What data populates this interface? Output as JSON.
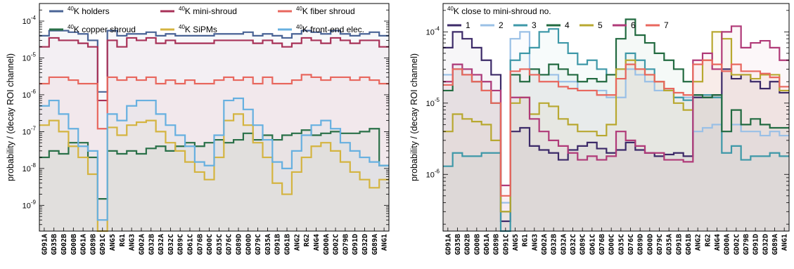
{
  "chart_data": [
    {
      "type": "line",
      "step": true,
      "log_y": true,
      "ylim": [
        2e-10,
        0.0003
      ],
      "yticks": [
        "10^-9",
        "10^-8",
        "10^-7",
        "10^-6",
        "10^-5",
        "10^-4"
      ],
      "ylabel": "probability / (decay ROI channel)",
      "legend_title": "",
      "legend_placement": "top",
      "categories": [
        "GD91A",
        "GD35B",
        "GD02B",
        "GD00B",
        "GD61A",
        "GD89B",
        "GD91C",
        "ANG5",
        "RG1",
        "ANG3",
        "GD02A",
        "GD32B",
        "GD32A",
        "GD32C",
        "GD89C",
        "GD61C",
        "GD76B",
        "GD00C",
        "GD35C",
        "GD76C",
        "GD89D",
        "GD00D",
        "GD79C",
        "GD35A",
        "GD91B",
        "GD61B",
        "ANG2",
        "RG2",
        "ANG4",
        "GD00A",
        "GD02C",
        "GD79B",
        "GD91D",
        "GD32D",
        "GD89A",
        "ANG1"
      ],
      "series": [
        {
          "name": "K holders",
          "sup": "40",
          "color": "#4a6496",
          "values": [
            4e-05,
            5.5e-05,
            5.5e-05,
            5e-05,
            4.5e-05,
            3e-05,
            1.2e-06,
            5.5e-05,
            4e-05,
            4.5e-05,
            4.5e-05,
            5e-05,
            4e-05,
            4.5e-05,
            4e-05,
            4e-05,
            4e-05,
            4e-05,
            4.5e-05,
            4.5e-05,
            4.5e-05,
            5e-05,
            4e-05,
            4.5e-05,
            4e-05,
            3.5e-05,
            4.5e-05,
            5.5e-05,
            5e-05,
            4.5e-05,
            5.5e-05,
            4.5e-05,
            4e-05,
            4.5e-05,
            5e-05,
            4e-05
          ]
        },
        {
          "name": "K mini-shroud",
          "sup": "40",
          "color": "#a83258",
          "values": [
            2e-05,
            3.5e-05,
            3e-05,
            3e-05,
            2.5e-05,
            2e-05,
            7e-07,
            3e-05,
            2e-05,
            3.5e-05,
            3e-05,
            3.5e-05,
            2.5e-05,
            3e-05,
            2.5e-05,
            2.5e-05,
            2.5e-05,
            2.5e-05,
            3e-05,
            3e-05,
            3e-05,
            3e-05,
            2.5e-05,
            3e-05,
            2.5e-05,
            2e-05,
            2.5e-05,
            3.5e-05,
            3e-05,
            2.5e-05,
            3.5e-05,
            3e-05,
            2.5e-05,
            3e-05,
            3e-05,
            2e-05
          ]
        },
        {
          "name": "K fiber shroud",
          "sup": "40",
          "color": "#e8675e",
          "values": [
            2e-06,
            3e-06,
            3e-06,
            2.5e-06,
            2e-06,
            2e-06,
            1.2e-07,
            3e-06,
            2.5e-06,
            3e-06,
            2.5e-06,
            3e-06,
            2e-06,
            2.5e-06,
            2e-06,
            2.5e-06,
            2e-06,
            2e-06,
            2.5e-06,
            3e-06,
            2.5e-06,
            3e-06,
            2e-06,
            3e-06,
            2e-06,
            2e-06,
            2.5e-06,
            3.5e-06,
            3e-06,
            2.5e-06,
            3e-06,
            3e-06,
            2.5e-06,
            3e-06,
            2.5e-06,
            2e-06
          ]
        },
        {
          "name": "K copper shroud",
          "sup": "40",
          "color": "#2a7048",
          "values": [
            2e-08,
            3e-08,
            2.5e-08,
            5e-08,
            5e-08,
            2e-08,
            1.5e-09,
            3e-08,
            2.5e-08,
            3e-08,
            2.5e-08,
            3.5e-08,
            4e-08,
            3e-08,
            4e-08,
            5e-08,
            4e-08,
            5e-08,
            6e-08,
            5e-08,
            6e-08,
            9e-08,
            6e-08,
            8e-08,
            6e-08,
            8e-08,
            9e-08,
            1.1e-07,
            8e-08,
            9e-08,
            1e-07,
            9e-08,
            9e-08,
            1e-07,
            1.2e-07,
            1.2e-08
          ]
        },
        {
          "name": "K SiPMs",
          "sup": "40",
          "color": "#d4b440",
          "values": [
            1.5e-07,
            2e-07,
            1e-07,
            4e-08,
            2e-08,
            7e-09,
            2e-10,
            1.3e-07,
            8e-08,
            1.5e-07,
            1.8e-07,
            2e-07,
            1e-07,
            5e-08,
            3e-08,
            1.5e-08,
            8e-09,
            5e-09,
            2e-08,
            2e-07,
            3e-07,
            1.5e-07,
            5e-08,
            2e-08,
            4e-09,
            2e-09,
            8e-09,
            2e-08,
            4e-08,
            5e-08,
            3e-08,
            1.5e-08,
            8e-09,
            5e-09,
            3e-09,
            5e-09
          ]
        },
        {
          "name": "K front-end elec.",
          "sup": "40",
          "color": "#67b0e0",
          "values": [
            5e-07,
            7e-07,
            3e-07,
            1.2e-07,
            4e-08,
            3e-08,
            4e-10,
            3e-07,
            2e-07,
            5e-07,
            7e-07,
            7e-07,
            3e-07,
            1.5e-07,
            8e-08,
            4e-08,
            1.5e-08,
            1.2e-08,
            8e-08,
            7e-07,
            8e-07,
            4e-07,
            1.5e-07,
            6e-08,
            1.5e-08,
            1e-08,
            3e-08,
            8e-08,
            1.5e-07,
            2e-07,
            1.2e-07,
            5e-08,
            3e-08,
            2e-08,
            1.5e-08,
            1.2e-08
          ]
        }
      ]
    },
    {
      "type": "line",
      "step": true,
      "log_y": true,
      "ylim": [
        1.6e-07,
        0.00025
      ],
      "yticks": [
        "10^-6",
        "10^-5",
        "10^-4"
      ],
      "ylabel": "probability / (decay ROI channel)",
      "legend_title": "K close to mini-shroud no.",
      "legend_title_sup": "40",
      "legend_placement": "top",
      "categories": [
        "GD91A",
        "GD35B",
        "GD02B",
        "GD00B",
        "GD61A",
        "GD89B",
        "GD91C",
        "ANG5",
        "RG1",
        "ANG3",
        "GD02A",
        "GD32B",
        "GD32A",
        "GD32C",
        "GD89C",
        "GD61C",
        "GD76B",
        "GD00C",
        "GD35C",
        "GD76C",
        "GD89D",
        "GD00D",
        "GD79C",
        "GD35A",
        "GD91B",
        "GD61B",
        "ANG2",
        "RG2",
        "ANG4",
        "GD00A",
        "GD02C",
        "GD79B",
        "GD91D",
        "GD32D",
        "GD89A",
        "ANG1"
      ],
      "series": [
        {
          "name": "1",
          "color": "#3c2a68",
          "values": [
            6e-05,
            0.0001,
            8e-05,
            6e-05,
            4e-05,
            2.5e-05,
            2.2e-07,
            4e-06,
            4.5e-06,
            2.5e-06,
            2.2e-06,
            2e-06,
            1.6e-06,
            2.2e-06,
            2.5e-06,
            2.8e-06,
            2.3e-06,
            2e-06,
            2.2e-06,
            2.8e-06,
            2.2e-06,
            2e-06,
            1.8e-06,
            1.9e-06,
            2e-06,
            1.8e-06,
            1.2e-05,
            1.2e-05,
            1.3e-05,
            3e-05,
            2.2e-05,
            2.5e-05,
            2e-05,
            1.6e-05,
            2e-05,
            1.4e-05
          ]
        },
        {
          "name": "2",
          "color": "#9ac0e6",
          "values": [
            2.5e-05,
            3.5e-05,
            3e-05,
            2.5e-05,
            2e-05,
            1.5e-05,
            4e-07,
            8e-05,
            0.0001,
            3e-05,
            2.5e-05,
            2.5e-05,
            2e-05,
            2e-05,
            1.5e-05,
            1.5e-05,
            1.5e-05,
            1.2e-05,
            1.2e-05,
            3e-05,
            2.5e-05,
            2e-05,
            1.5e-05,
            1.5e-05,
            1.2e-05,
            1.2e-05,
            4e-06,
            4.5e-06,
            5e-06,
            4e-06,
            5e-06,
            4e-06,
            4e-06,
            3.5e-06,
            4e-06,
            3.5e-06
          ]
        },
        {
          "name": "3",
          "color": "#3e98a8",
          "values": [
            1.3e-06,
            2e-06,
            1.8e-06,
            1.8e-06,
            2e-06,
            2e-06,
            1.6e-07,
            4e-05,
            5e-05,
            6e-05,
            0.0001,
            0.00011,
            7e-05,
            5e-05,
            3.5e-05,
            4e-05,
            3e-05,
            2.5e-05,
            3e-05,
            5e-05,
            4e-05,
            3e-05,
            2e-05,
            1.5e-05,
            1.2e-05,
            1.1e-05,
            1.3e-05,
            1.3e-05,
            1.2e-05,
            2e-06,
            2.5e-06,
            1.6e-06,
            1.8e-06,
            1.8e-06,
            2e-06,
            1.8e-06
          ]
        },
        {
          "name": "4",
          "color": "#226a40",
          "values": [
            1.5e-05,
            3e-05,
            2.5e-05,
            2e-05,
            1.5e-05,
            1e-05,
            3e-07,
            2.5e-05,
            2e-05,
            3e-05,
            2.5e-05,
            3.5e-05,
            3e-05,
            2.5e-05,
            2e-05,
            2.2e-05,
            2e-05,
            2.5e-05,
            8e-05,
            0.00015,
            9e-05,
            7e-05,
            5e-05,
            4e-05,
            3e-05,
            2e-05,
            1.3e-05,
            1.2e-05,
            1.3e-05,
            4e-06,
            8e-06,
            5e-06,
            6e-06,
            5e-06,
            4.5e-06,
            4.5e-06
          ]
        },
        {
          "name": "5",
          "color": "#b8a830",
          "values": [
            4e-06,
            7e-06,
            6e-06,
            5.5e-06,
            5e-06,
            3e-06,
            3e-07,
            1e-05,
            1.2e-05,
            7e-06,
            1e-05,
            9e-06,
            6e-06,
            5e-06,
            4e-06,
            4e-06,
            3.5e-06,
            5e-06,
            3e-05,
            4e-05,
            3e-05,
            2.5e-05,
            2e-05,
            1.5e-05,
            1e-05,
            8e-06,
            2e-05,
            4e-05,
            0.0001,
            8e-05,
            2.5e-05,
            2.5e-05,
            2.2e-05,
            2.5e-05,
            2.5e-05,
            1.5e-05
          ]
        },
        {
          "name": "6",
          "color": "#b03a78",
          "values": [
            2e-05,
            3.5e-05,
            3e-05,
            2.5e-05,
            2e-05,
            1.5e-05,
            7e-07,
            1.2e-05,
            1.2e-05,
            6e-06,
            4e-06,
            3e-06,
            2.5e-06,
            2e-06,
            1.6e-06,
            1.8e-06,
            1.6e-06,
            1.8e-06,
            4e-06,
            3e-06,
            2.5e-06,
            2e-06,
            2e-06,
            1.6e-06,
            1.6e-06,
            1.5e-06,
            4e-05,
            5e-05,
            3e-05,
            0.0001,
            0.00012,
            6e-05,
            7e-05,
            7.5e-05,
            6e-05,
            4e-05
          ]
        },
        {
          "name": "7",
          "color": "#e8675e",
          "values": [
            1.8e-05,
            3e-05,
            2.5e-05,
            2e-05,
            1.5e-05,
            1e-05,
            5e-07,
            2.8e-05,
            3e-05,
            2.5e-05,
            2e-05,
            2e-05,
            1.7e-05,
            1.6e-05,
            1.5e-05,
            1.5e-05,
            1.3e-05,
            1.3e-05,
            2.2e-05,
            3.5e-05,
            3e-05,
            2.5e-05,
            2e-05,
            1.6e-05,
            1.4e-05,
            1.3e-05,
            3.5e-05,
            4e-05,
            3.5e-05,
            2.8e-05,
            3.5e-05,
            2.8e-05,
            2.8e-05,
            2.6e-05,
            2.3e-05,
            1.7e-05
          ]
        }
      ]
    }
  ]
}
